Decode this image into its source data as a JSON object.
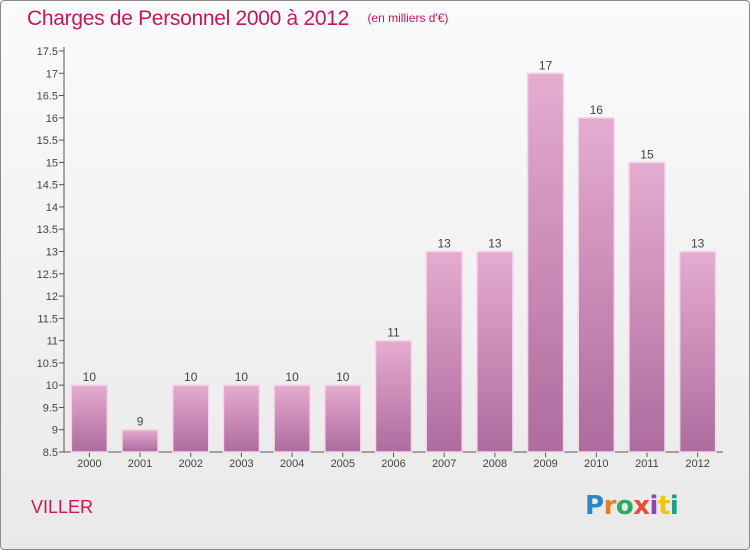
{
  "header": {
    "title": "Charges de Personnel 2000 à 2012",
    "subtitle": "(en milliers d'€)"
  },
  "footer": {
    "commune": "VILLER",
    "logo_text": "Proxiti"
  },
  "colors": {
    "accent": "#c2185b",
    "bar_light": "#e3a6cb",
    "bar_dark": "#a8669a",
    "axis": "#555555"
  },
  "chart_data": {
    "type": "bar",
    "title": "Charges de Personnel 2000 à 2012",
    "subtitle": "(en milliers d'€)",
    "xlabel": "",
    "ylabel": "",
    "categories": [
      "2000",
      "2001",
      "2002",
      "2003",
      "2004",
      "2005",
      "2006",
      "2007",
      "2008",
      "2009",
      "2010",
      "2011",
      "2012"
    ],
    "values": [
      10,
      9,
      10,
      10,
      10,
      10,
      11,
      13,
      13,
      17,
      16,
      15,
      13
    ],
    "ylim": [
      8.5,
      17.5
    ],
    "yticks": [
      "8.5",
      "9",
      "9.5",
      "10",
      "10.5",
      "11",
      "11.5",
      "12",
      "12.5",
      "13",
      "13.5",
      "14",
      "14.5",
      "15",
      "15.5",
      "16",
      "16.5",
      "17",
      "17.5"
    ],
    "grid": false,
    "legend": "none"
  }
}
